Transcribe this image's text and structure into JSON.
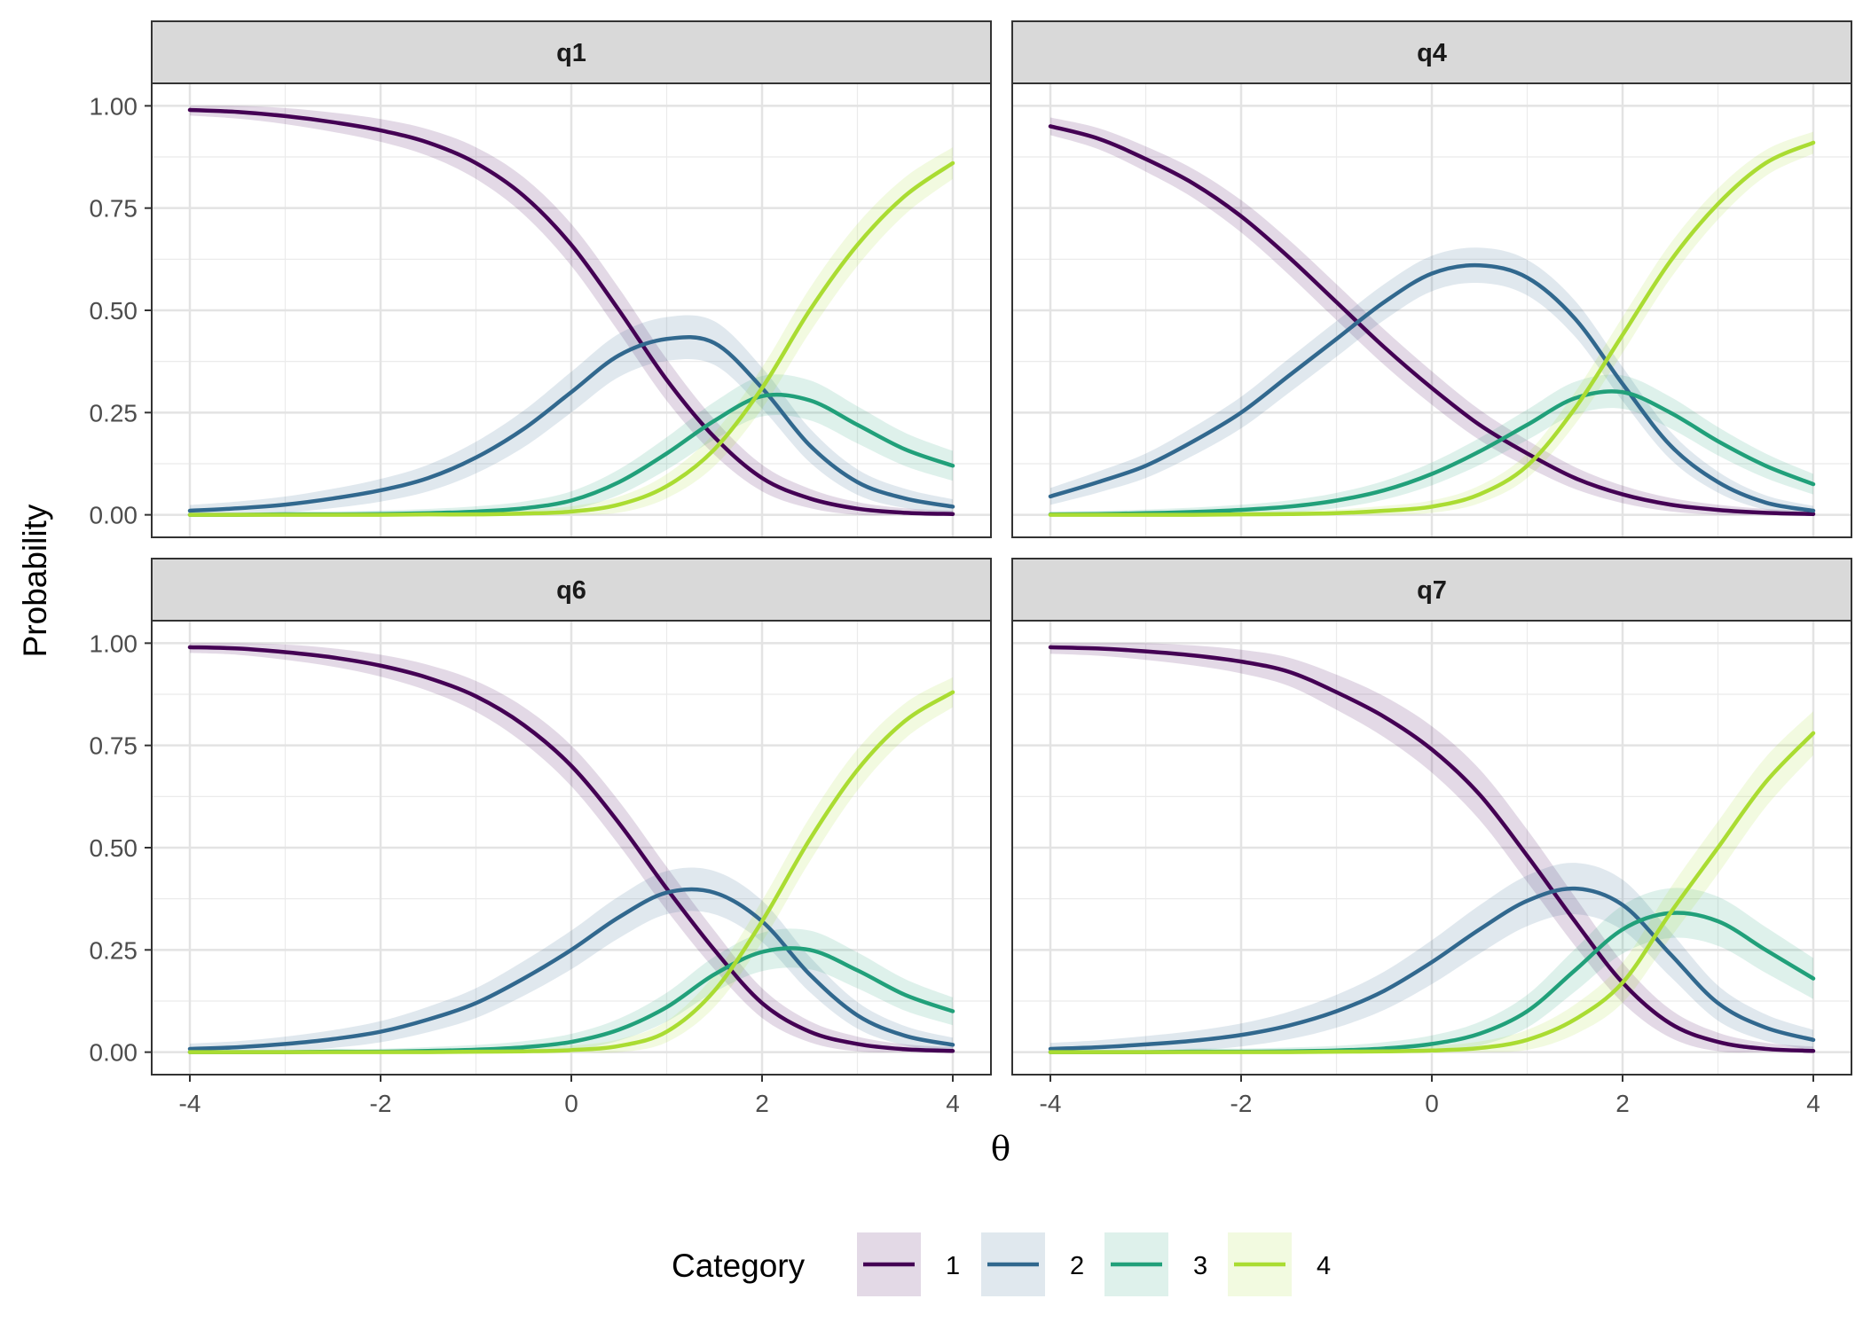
{
  "chart_data": {
    "type": "line",
    "ylabel": "Probability",
    "xlabel": "θ",
    "xlim": [
      -4,
      4
    ],
    "ylim": [
      0,
      1
    ],
    "x_ticks": [
      -4,
      -2,
      0,
      2,
      4
    ],
    "x_tick_labels": [
      "-4",
      "-2",
      "0",
      "2",
      "4"
    ],
    "y_ticks": [
      0,
      0.25,
      0.5,
      0.75,
      1
    ],
    "y_tick_labels": [
      "0.00",
      "0.25",
      "0.50",
      "0.75",
      "1.00"
    ],
    "grid": true,
    "legend": {
      "title": "Category",
      "position": "bottom",
      "labels": [
        "1",
        "2",
        "3",
        "4"
      ]
    },
    "colors": [
      "#440154",
      "#31688E",
      "#21A07A",
      "#AADC32"
    ],
    "x": [
      -4,
      -3.5,
      -3,
      -2.5,
      -2,
      -1.5,
      -1,
      -0.5,
      0,
      0.5,
      1,
      1.5,
      2,
      2.5,
      3,
      3.5,
      4
    ],
    "panels": [
      {
        "title": "q1",
        "band": 0.05,
        "series": [
          {
            "name": "1",
            "values": [
              0.99,
              0.985,
              0.975,
              0.96,
              0.94,
              0.91,
              0.86,
              0.78,
              0.66,
              0.5,
              0.33,
              0.19,
              0.09,
              0.04,
              0.015,
              0.005,
              0.002
            ]
          },
          {
            "name": "2",
            "values": [
              0.01,
              0.016,
              0.025,
              0.04,
              0.06,
              0.09,
              0.14,
              0.21,
              0.3,
              0.39,
              0.43,
              0.42,
              0.31,
              0.17,
              0.08,
              0.04,
              0.02
            ]
          },
          {
            "name": "3",
            "values": [
              0,
              0,
              0.001,
              0.001,
              0.002,
              0.004,
              0.008,
              0.016,
              0.035,
              0.08,
              0.15,
              0.23,
              0.29,
              0.28,
              0.22,
              0.16,
              0.12
            ]
          },
          {
            "name": "4",
            "values": [
              0,
              0,
              0,
              0,
              0,
              0.001,
              0.001,
              0.003,
              0.008,
              0.025,
              0.07,
              0.16,
              0.31,
              0.5,
              0.66,
              0.78,
              0.86
            ]
          }
        ]
      },
      {
        "title": "q4",
        "band": 0.04,
        "series": [
          {
            "name": "1",
            "values": [
              0.95,
              0.92,
              0.87,
              0.81,
              0.73,
              0.63,
              0.52,
              0.41,
              0.31,
              0.22,
              0.15,
              0.09,
              0.05,
              0.025,
              0.012,
              0.005,
              0.002
            ]
          },
          {
            "name": "2",
            "values": [
              0.045,
              0.08,
              0.12,
              0.18,
              0.25,
              0.34,
              0.43,
              0.52,
              0.59,
              0.61,
              0.58,
              0.48,
              0.32,
              0.17,
              0.08,
              0.03,
              0.01
            ]
          },
          {
            "name": "3",
            "values": [
              0.001,
              0.002,
              0.004,
              0.007,
              0.012,
              0.02,
              0.035,
              0.06,
              0.1,
              0.155,
              0.22,
              0.285,
              0.3,
              0.25,
              0.18,
              0.12,
              0.075
            ]
          },
          {
            "name": "4",
            "values": [
              0,
              0,
              0,
              0,
              0.001,
              0.002,
              0.004,
              0.01,
              0.02,
              0.05,
              0.12,
              0.26,
              0.44,
              0.62,
              0.76,
              0.86,
              0.91
            ]
          }
        ]
      },
      {
        "title": "q6",
        "band": 0.05,
        "series": [
          {
            "name": "1",
            "values": [
              0.99,
              0.987,
              0.978,
              0.965,
              0.945,
              0.915,
              0.87,
              0.8,
              0.7,
              0.56,
              0.4,
              0.25,
              0.12,
              0.05,
              0.02,
              0.007,
              0.003
            ]
          },
          {
            "name": "2",
            "values": [
              0.008,
              0.012,
              0.02,
              0.032,
              0.05,
              0.08,
              0.12,
              0.18,
              0.25,
              0.33,
              0.39,
              0.39,
              0.32,
              0.19,
              0.09,
              0.04,
              0.018
            ]
          },
          {
            "name": "3",
            "values": [
              0,
              0,
              0,
              0.001,
              0.001,
              0.003,
              0.006,
              0.012,
              0.025,
              0.055,
              0.11,
              0.19,
              0.245,
              0.25,
              0.2,
              0.14,
              0.1
            ]
          },
          {
            "name": "4",
            "values": [
              0,
              0,
              0,
              0,
              0,
              0,
              0.001,
              0.002,
              0.005,
              0.015,
              0.05,
              0.15,
              0.32,
              0.52,
              0.69,
              0.81,
              0.88
            ]
          }
        ]
      },
      {
        "title": "q7",
        "band": 0.06,
        "series": [
          {
            "name": "1",
            "values": [
              0.99,
              0.987,
              0.98,
              0.97,
              0.955,
              0.93,
              0.88,
              0.82,
              0.74,
              0.63,
              0.48,
              0.32,
              0.17,
              0.07,
              0.025,
              0.008,
              0.003
            ]
          },
          {
            "name": "2",
            "values": [
              0.008,
              0.012,
              0.019,
              0.028,
              0.042,
              0.065,
              0.1,
              0.15,
              0.22,
              0.3,
              0.37,
              0.4,
              0.36,
              0.24,
              0.12,
              0.06,
              0.03
            ]
          },
          {
            "name": "3",
            "values": [
              0,
              0,
              0,
              0.001,
              0.001,
              0.002,
              0.004,
              0.009,
              0.02,
              0.045,
              0.1,
              0.2,
              0.3,
              0.34,
              0.32,
              0.25,
              0.18
            ]
          },
          {
            "name": "4",
            "values": [
              0,
              0,
              0,
              0,
              0,
              0,
              0.001,
              0.002,
              0.004,
              0.01,
              0.03,
              0.08,
              0.17,
              0.34,
              0.5,
              0.66,
              0.78
            ]
          }
        ]
      }
    ]
  }
}
